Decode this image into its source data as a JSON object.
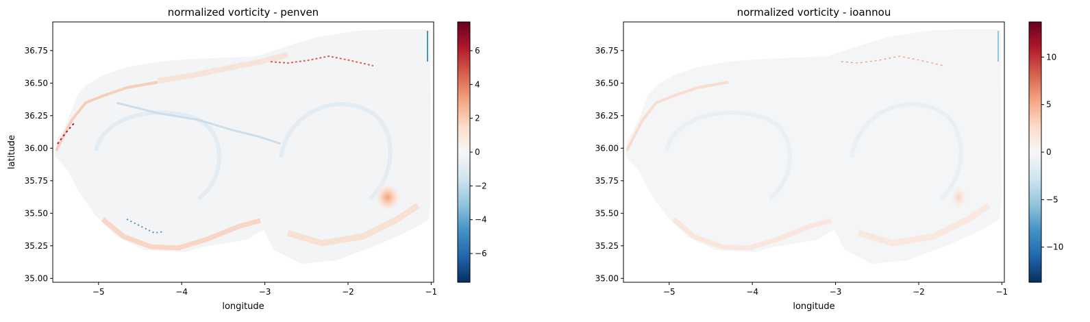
{
  "chart_data": [
    {
      "type": "heatmap",
      "title": "normalized vorticity - penven",
      "xlabel": "longitude",
      "ylabel": "latitude",
      "xlim": [
        -5.55,
        -0.97
      ],
      "ylim": [
        34.97,
        36.97
      ],
      "xticks": [
        -5,
        -4,
        -3,
        -2,
        -1
      ],
      "xtick_labels": [
        "−5",
        "−4",
        "−3",
        "−2",
        "−1"
      ],
      "yticks": [
        35.0,
        35.25,
        35.5,
        35.75,
        36.0,
        36.25,
        36.5,
        36.75
      ],
      "ytick_labels": [
        "35.00",
        "35.25",
        "35.50",
        "35.75",
        "36.00",
        "36.25",
        "36.50",
        "36.75"
      ],
      "colormap": "RdBu_r",
      "colorbar": {
        "range": [
          -7.7,
          7.7
        ],
        "ticks": [
          -6,
          -4,
          -2,
          0,
          2,
          4,
          6
        ],
        "tick_labels": [
          "−6",
          "−4",
          "−2",
          "0",
          "2",
          "4",
          "6"
        ]
      },
      "grid": false
    },
    {
      "type": "heatmap",
      "title": "normalized vorticity - ioannou",
      "xlabel": "longitude",
      "ylabel": "",
      "xlim": [
        -5.55,
        -0.97
      ],
      "ylim": [
        34.97,
        36.97
      ],
      "xticks": [
        -5,
        -4,
        -3,
        -2,
        -1
      ],
      "xtick_labels": [
        "−5",
        "−4",
        "−3",
        "−2",
        "−1"
      ],
      "yticks": [
        35.0,
        35.25,
        35.5,
        35.75,
        36.0,
        36.25,
        36.5,
        36.75
      ],
      "ytick_labels": [
        "35.00",
        "35.25",
        "35.50",
        "35.75",
        "36.00",
        "36.25",
        "36.50",
        "36.75"
      ],
      "colormap": "RdBu_r",
      "colorbar": {
        "range": [
          -13.7,
          13.7
        ],
        "ticks": [
          -10,
          -5,
          0,
          5,
          10
        ],
        "tick_labels": [
          "−10",
          "−5",
          "0",
          "5",
          "10"
        ]
      },
      "grid": false
    }
  ]
}
